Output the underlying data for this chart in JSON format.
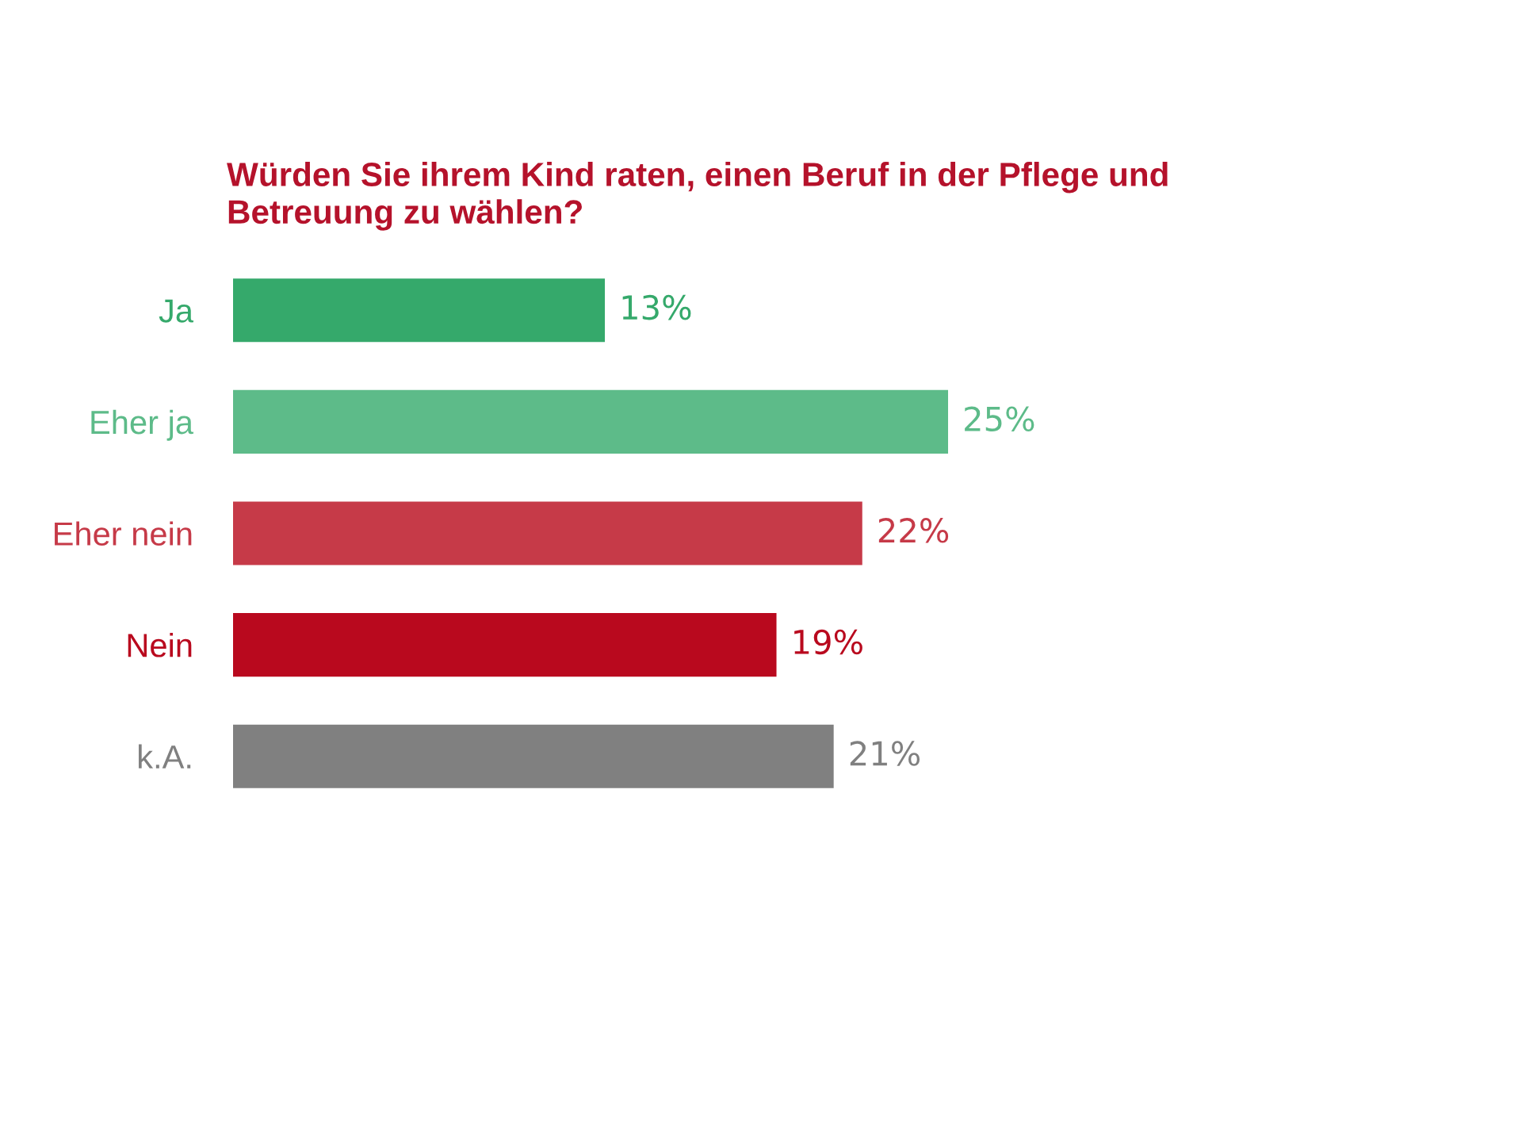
{
  "chart_data": {
    "type": "bar",
    "orientation": "horizontal",
    "title": "Würden Sie ihrem Kind raten, einen Beruf in der Pflege und\nBetreuung zu wählen?",
    "categories": [
      "Ja",
      "Eher ja",
      "Eher nein",
      "Nein",
      "k.A."
    ],
    "values": [
      13,
      25,
      22,
      19,
      21
    ],
    "value_labels": [
      "13%",
      "25%",
      "22%",
      "19%",
      "21%"
    ],
    "colors": [
      "#35a96b",
      "#5dbb89",
      "#c63a48",
      "#b9091e",
      "#808080"
    ],
    "tick_labels": "y",
    "grid": false,
    "legend": false
  }
}
